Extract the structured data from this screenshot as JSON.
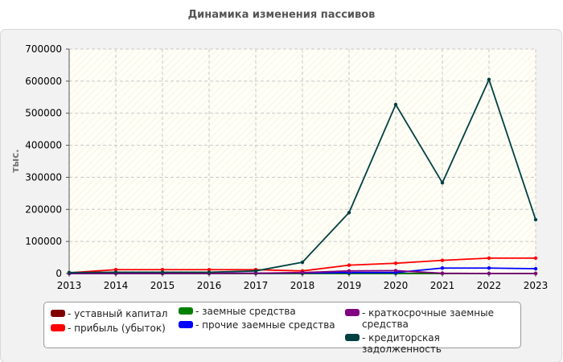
{
  "chart_data": {
    "type": "line",
    "title": "Динамика изменения пассивов",
    "ylabel": "тыс.",
    "xlabel": "",
    "x": [
      2013,
      2014,
      2015,
      2016,
      2017,
      2018,
      2019,
      2020,
      2021,
      2022,
      2023
    ],
    "x_tick_labels": [
      "2013",
      "2014",
      "2015",
      "2016",
      "2017",
      "2018",
      "2019",
      "2020",
      "2021",
      "2022",
      "2023"
    ],
    "ylim": [
      0,
      700000
    ],
    "y_ticks": [
      0,
      100000,
      200000,
      300000,
      400000,
      500000,
      600000,
      700000
    ],
    "y_tick_labels": [
      "0",
      "100000",
      "200000",
      "300000",
      "400000",
      "500000",
      "600000",
      "700000"
    ],
    "grid": true,
    "legend_position": "bottom",
    "series": [
      {
        "name": "- уставный капитал",
        "color": "#800000",
        "values": [
          200,
          200,
          200,
          200,
          200,
          200,
          200,
          200,
          200,
          200,
          200
        ]
      },
      {
        "name": "- прибыль (убыток)",
        "color": "#ff0000",
        "values": [
          2000,
          12000,
          12000,
          12000,
          12000,
          8000,
          26000,
          32000,
          41000,
          48000,
          48000
        ]
      },
      {
        "name": "- заемные средства",
        "color": "#008000",
        "values": [
          0,
          0,
          0,
          0,
          0,
          0,
          0,
          0,
          0,
          0,
          0
        ]
      },
      {
        "name": "- прочие заемные средства",
        "color": "#0000ff",
        "values": [
          0,
          1000,
          1000,
          1000,
          1000,
          2000,
          3000,
          3000,
          17000,
          17000,
          15000
        ]
      },
      {
        "name": "- краткосрочные заемные средства",
        "color": "#800080",
        "values": [
          0,
          0,
          0,
          500,
          1000,
          3000,
          8000,
          9000,
          1000,
          0,
          0
        ]
      },
      {
        "name": "- кредиторская задолженность",
        "color": "#004040",
        "values": [
          3000,
          4000,
          4000,
          4000,
          8000,
          35000,
          190000,
          527000,
          283000,
          605000,
          168000
        ]
      }
    ]
  }
}
